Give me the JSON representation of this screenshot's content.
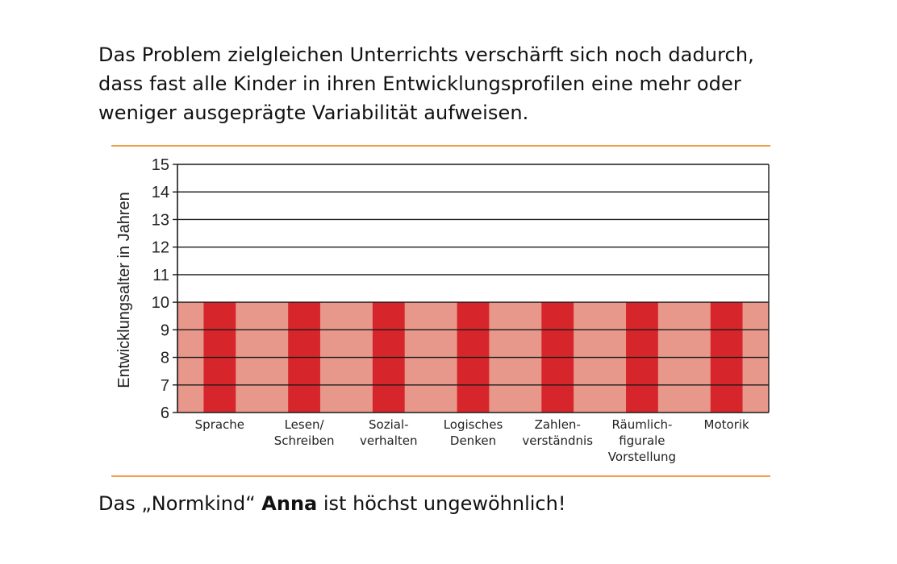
{
  "intro": {
    "lines": [
      "Das Problem zielgleichen Unterrichts verschärft sich noch dadurch,",
      "dass fast alle Kinder in ihren Entwicklungsprofilen eine mehr oder",
      "weniger ausgeprägte Variabilität aufweisen."
    ]
  },
  "footer": {
    "before": "Das „Normkind“ ",
    "bold": "Anna",
    "after": " ist höchst ungewöhnlich!"
  },
  "chart_data": {
    "type": "bar",
    "title": "",
    "xlabel": "",
    "ylabel": "Entwicklungsalter in Jahren",
    "ylim": [
      6,
      15
    ],
    "yticks": [
      6,
      7,
      8,
      9,
      10,
      11,
      12,
      13,
      14,
      15
    ],
    "categories": [
      [
        "Sprache"
      ],
      [
        "Lesen/",
        "Schreiben"
      ],
      [
        "Sozial-",
        "verhalten"
      ],
      [
        "Logisches",
        "Denken"
      ],
      [
        "Zahlen-",
        "verständnis"
      ],
      [
        "Räumlich-",
        "figurale",
        "Vorstellung"
      ],
      [
        "Motorik"
      ]
    ],
    "values": [
      10,
      10,
      10,
      10,
      10,
      10,
      10
    ],
    "band": [
      6,
      10
    ],
    "grid": true,
    "colors": {
      "bar": "#d6262b",
      "band": "#e8988a",
      "grid": "#1a1a1a",
      "rule": "#f0a04b"
    }
  }
}
